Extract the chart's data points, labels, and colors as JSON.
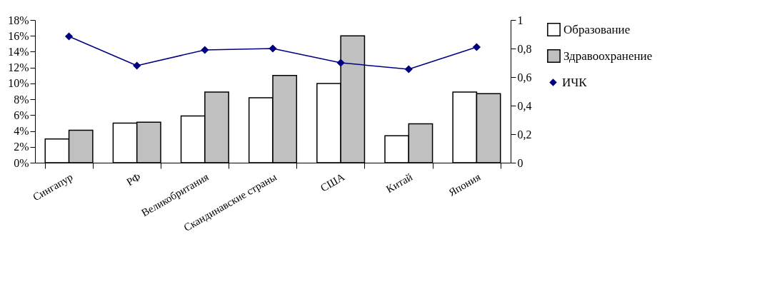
{
  "chart_data": {
    "type": "bar",
    "categories": [
      "Сингапур",
      "РФ",
      "Великобритания",
      "Скандинавские страны",
      "США",
      "Китай",
      "Япония"
    ],
    "series": [
      {
        "name": "Образование",
        "color": "#ffffff",
        "values": [
          3,
          5,
          5.9,
          8.2,
          10,
          3.4,
          8.9
        ]
      },
      {
        "name": "Здравоохранение",
        "color": "#c0c0c0",
        "values": [
          4.1,
          5.1,
          8.9,
          11,
          16,
          4.9,
          8.7
        ]
      },
      {
        "name": "ИЧК",
        "type": "line",
        "axis": "y2",
        "color": "#000080",
        "values": [
          0.885,
          0.68,
          0.79,
          0.8,
          0.7,
          0.655,
          0.81
        ]
      }
    ],
    "ylim": [
      0,
      18
    ],
    "yticks": [
      {
        "value": 0,
        "label": "0%"
      },
      {
        "value": 2,
        "label": "2%"
      },
      {
        "value": 4,
        "label": "4%"
      },
      {
        "value": 6,
        "label": "6%"
      },
      {
        "value": 8,
        "label": "8%"
      },
      {
        "value": 10,
        "label": "10%"
      },
      {
        "value": 12,
        "label": "12%"
      },
      {
        "value": 14,
        "label": "14%"
      },
      {
        "value": 16,
        "label": "16%"
      },
      {
        "value": 18,
        "label": "18%"
      }
    ],
    "y2lim": [
      0,
      1
    ],
    "y2ticks": [
      0,
      {
        "value": 0.2,
        "label": "0,2"
      },
      {
        "value": 0.4,
        "label": "0,4"
      },
      {
        "value": 0.6,
        "label": "0,6"
      },
      {
        "value": 0.8,
        "label": "0,8"
      },
      1
    ],
    "grid": false,
    "legend": "right",
    "marker": "diamond"
  }
}
